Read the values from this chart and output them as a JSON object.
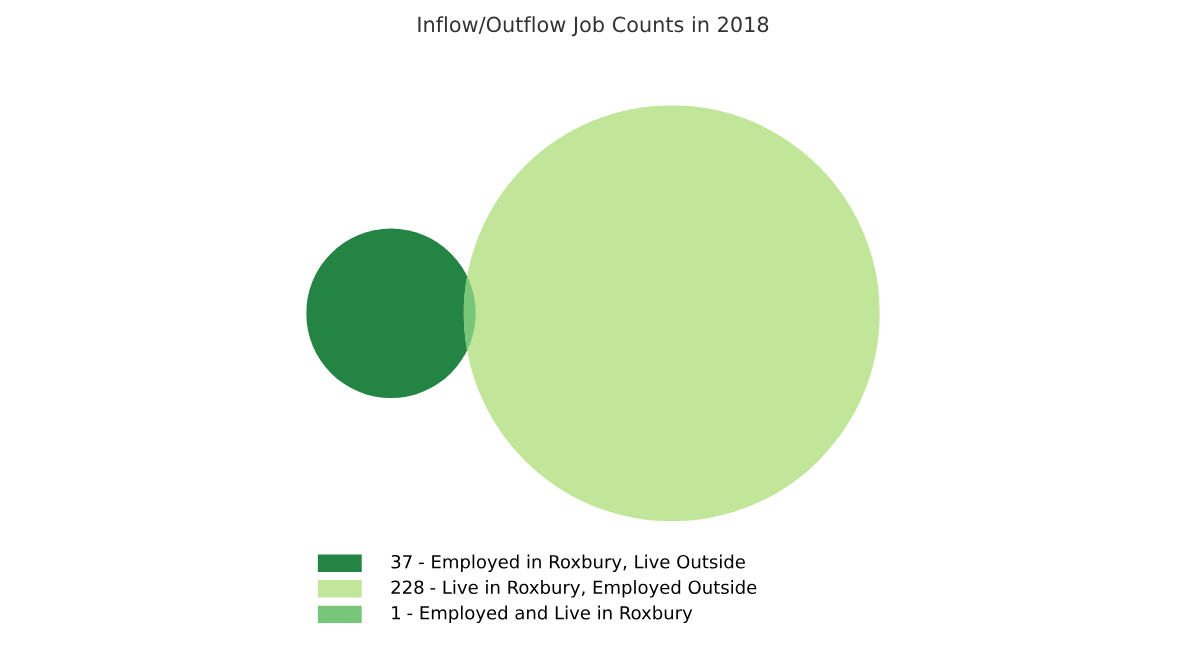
{
  "chart_data": {
    "type": "other",
    "title": "Inflow/Outflow Job Counts in 2018",
    "categories": [
      "- Employed in Roxbury, Live Outside",
      "- Live in Roxbury, Employed Outside",
      "- Employed and Live in Roxbury"
    ],
    "data_labels": true,
    "values": [
      37,
      228,
      1
    ],
    "colors": [
      "#238443",
      "#c2e699",
      "#78c679"
    ]
  }
}
